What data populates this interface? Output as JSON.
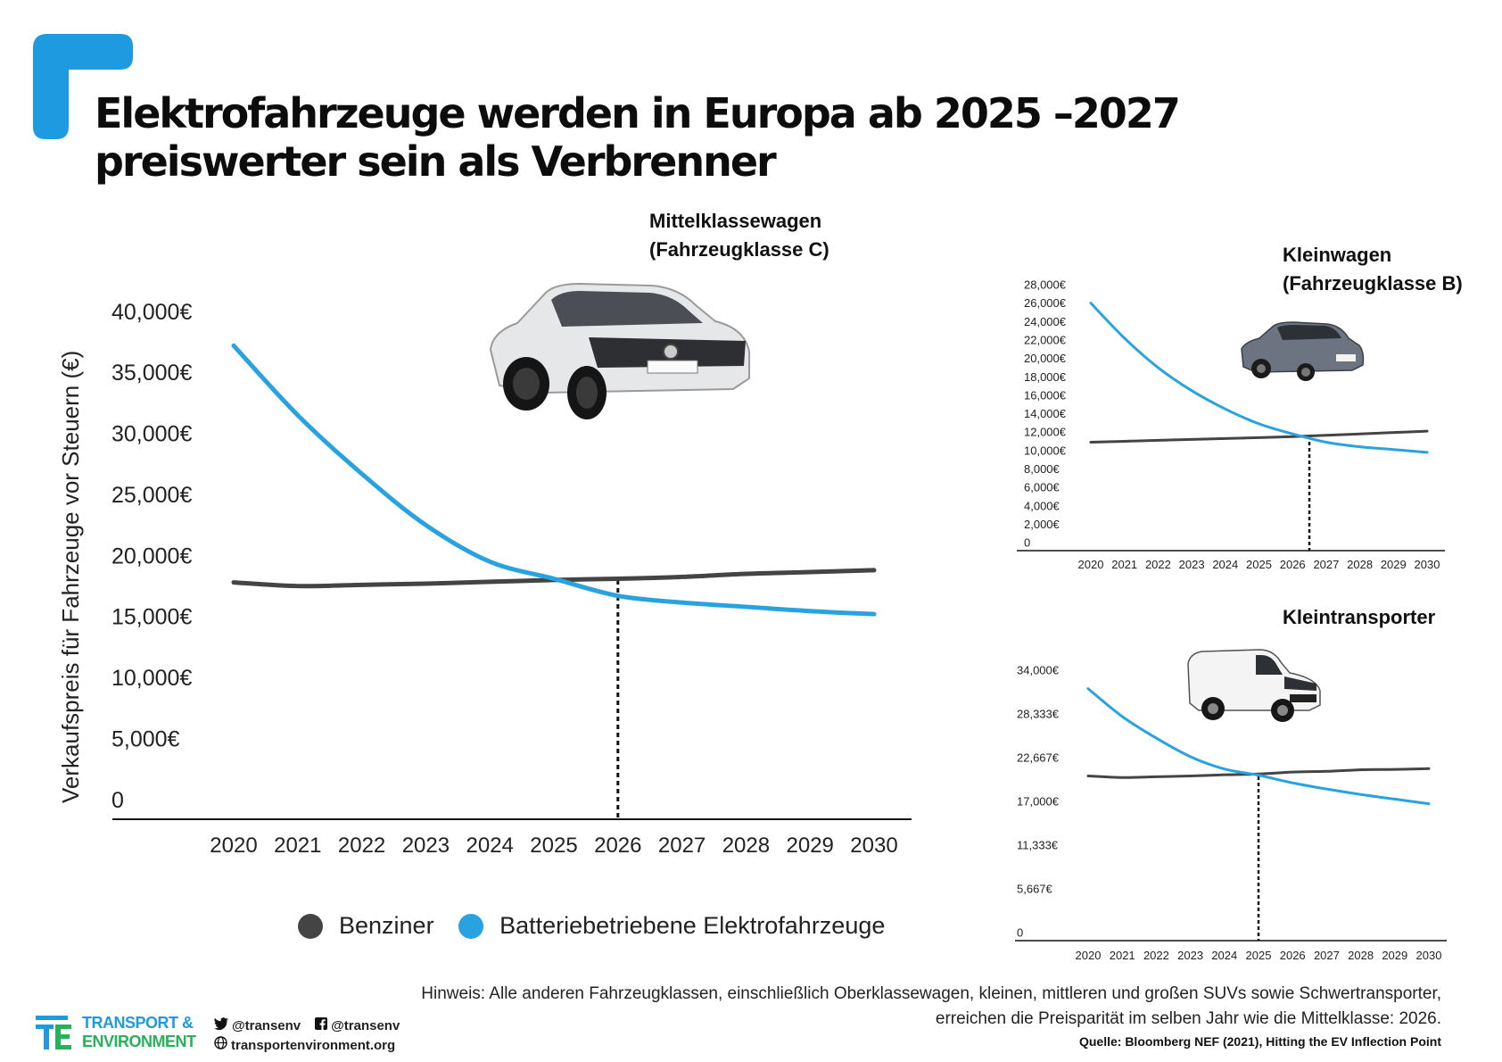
{
  "title": "Elektrofahrzeuge werden in Europa ab 2025 –2027 preiswerter sein als Verbrenner",
  "colors": {
    "accent": "#1e9be0",
    "petrol": "#444444",
    "bev": "#29a3df"
  },
  "legend": {
    "petrol": "Benziner",
    "bev": "Batteriebetriebene Elektrofahrzeuge"
  },
  "note": "Hinweis: Alle anderen Fahrzeugklassen, einschließlich Oberklassewagen, kleinen, mittleren und großen SUVs sowie Schwertransporter, erreichen die Preisparität im selben Jahr wie die Mittelklasse: 2026.",
  "source": "Quelle: Bloomberg NEF (2021), Hitting the EV Inflection Point",
  "footer": {
    "logo_line1": "TRANSPORT &",
    "logo_line2": "ENVIRONMENT",
    "twitter": "@transenv",
    "facebook": "@transenv",
    "website": "transportenvironment.org"
  },
  "chart_data": [
    {
      "type": "line",
      "title": "Mittelklassewagen\n(Fahrzeugklasse C)",
      "ylabel": "Verkaufspreis für Fahrzeuge vor Steuern  (€)",
      "x": [
        2020,
        2021,
        2022,
        2023,
        2024,
        2025,
        2026,
        2027,
        2028,
        2029,
        2030
      ],
      "ylim": [
        0,
        40000
      ],
      "yticks": [
        0,
        5000,
        10000,
        15000,
        20000,
        25000,
        30000,
        35000,
        40000
      ],
      "ytick_labels": [
        "0",
        "5,000€",
        "10,000€",
        "15,000€",
        "20,000€",
        "25,000€",
        "30,000€",
        "35,000€",
        "40,000€"
      ],
      "parity_year": 2026,
      "series": [
        {
          "name": "Benziner",
          "values": [
            17800,
            17500,
            17600,
            17700,
            17850,
            18000,
            18100,
            18250,
            18500,
            18650,
            18800
          ]
        },
        {
          "name": "Batteriebetriebene Elektrofahrzeuge",
          "values": [
            37200,
            31500,
            26700,
            22500,
            19500,
            18100,
            16700,
            16150,
            15800,
            15450,
            15200
          ]
        }
      ]
    },
    {
      "type": "line",
      "title": "Kleinwagen\n(Fahrzeugklasse B)",
      "x": [
        2020,
        2021,
        2022,
        2023,
        2024,
        2025,
        2026,
        2027,
        2028,
        2029,
        2030
      ],
      "ylim": [
        0,
        28000
      ],
      "yticks": [
        0,
        2000,
        4000,
        6000,
        8000,
        10000,
        12000,
        14000,
        16000,
        18000,
        20000,
        22000,
        24000,
        26000,
        28000
      ],
      "ytick_labels": [
        "0",
        "2,000€",
        "4,000€",
        "6,000€",
        "8,000€",
        "10,000€",
        "12,000€",
        "14,000€",
        "16,000€",
        "18,000€",
        "20,000€",
        "22,000€",
        "24,000€",
        "26,000€",
        "28,000€"
      ],
      "parity_year": 2026.5,
      "series": [
        {
          "name": "Benziner",
          "values": [
            10900,
            11000,
            11100,
            11200,
            11300,
            11400,
            11500,
            11650,
            11800,
            11950,
            12100
          ]
        },
        {
          "name": "Batteriebetriebene Elektrofahrzeuge",
          "values": [
            26000,
            22200,
            19000,
            16500,
            14500,
            12900,
            11800,
            10900,
            10400,
            10100,
            9800
          ]
        }
      ]
    },
    {
      "type": "line",
      "title": "Kleintransporter",
      "x": [
        2020,
        2021,
        2022,
        2023,
        2024,
        2025,
        2026,
        2027,
        2028,
        2029,
        2030
      ],
      "ylim": [
        0,
        34000
      ],
      "yticks": [
        0,
        5667,
        11333,
        17000,
        22667,
        28333,
        34000
      ],
      "ytick_labels": [
        "0",
        "5,667€",
        "11,333€",
        "17,000€",
        "22,667€",
        "28,333€",
        "34,000€"
      ],
      "parity_year": 2025,
      "series": [
        {
          "name": "Benziner",
          "values": [
            20300,
            20100,
            20200,
            20300,
            20450,
            20550,
            20800,
            20900,
            21100,
            21150,
            21250
          ]
        },
        {
          "name": "Batteriebetriebene Elektrofahrzeuge",
          "values": [
            31600,
            28000,
            25200,
            22800,
            21200,
            20400,
            19400,
            18600,
            17900,
            17300,
            16700
          ]
        }
      ]
    }
  ]
}
